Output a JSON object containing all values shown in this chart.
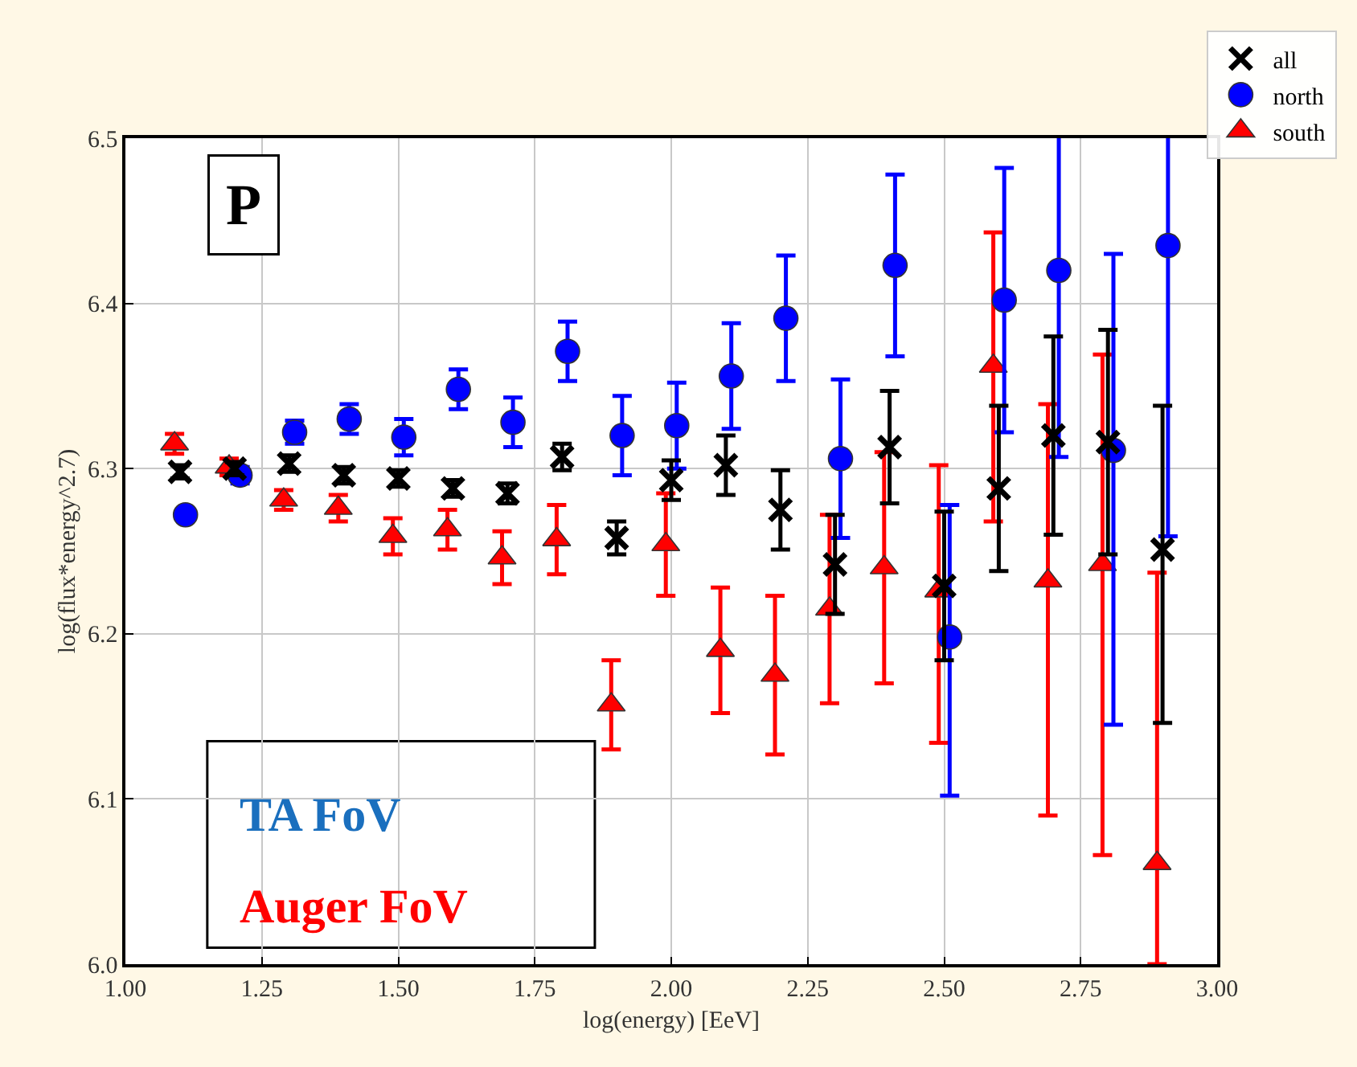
{
  "chart_data": {
    "type": "scatter",
    "xlabel": "log(energy) [EeV]",
    "ylabel": "log(flux*energy^2.7)",
    "xlim": [
      1.0,
      3.0
    ],
    "xticks": [
      {
        "value": 1.0,
        "label": "1.00"
      },
      {
        "value": 1.25,
        "label": "1.25"
      },
      {
        "value": 1.5,
        "label": "1.50"
      },
      {
        "value": 1.75,
        "label": "1.75"
      },
      {
        "value": 2.0,
        "label": "2.00"
      },
      {
        "value": 2.25,
        "label": "2.25"
      },
      {
        "value": 2.5,
        "label": "2.50"
      },
      {
        "value": 2.75,
        "label": "2.75"
      },
      {
        "value": 3.0,
        "label": "3.00"
      }
    ],
    "ylim": [
      6.0,
      6.5
    ],
    "yticks": [
      {
        "value": 6.0,
        "label": "6.0"
      },
      {
        "value": 6.1,
        "label": "6.1"
      },
      {
        "value": 6.2,
        "label": "6.2"
      },
      {
        "value": 6.3,
        "label": "6.3"
      },
      {
        "value": 6.4,
        "label": "6.4"
      },
      {
        "value": 6.5,
        "label": "6.5"
      }
    ],
    "grid": true,
    "legend": "top right",
    "annotations": [
      "P",
      "TA FoV",
      "Auger FoV"
    ],
    "series": [
      {
        "name": "all",
        "color": "#000000",
        "marker": "cross",
        "x": [
          1.1,
          1.2,
          1.3,
          1.4,
          1.5,
          1.6,
          1.7,
          1.8,
          1.9,
          2.0,
          2.1,
          2.2,
          2.3,
          2.4,
          2.5,
          2.6,
          2.7,
          2.8,
          2.9
        ],
        "values": [
          6.298,
          6.3,
          6.303,
          6.296,
          6.294,
          6.288,
          6.285,
          6.307,
          6.258,
          6.293,
          6.302,
          6.275,
          6.242,
          6.313,
          6.229,
          6.288,
          6.32,
          6.316,
          6.251
        ],
        "errors": [
          0.004,
          0.004,
          0.005,
          0.005,
          0.005,
          0.005,
          0.006,
          0.008,
          0.01,
          0.012,
          0.018,
          0.024,
          0.03,
          0.034,
          0.045,
          0.05,
          0.06,
          0.068,
          [
            6.146,
            6.338
          ]
        ]
      },
      {
        "name": "north",
        "color": "#0000ff",
        "marker": "circle",
        "x": [
          1.11,
          1.21,
          1.31,
          1.41,
          1.51,
          1.61,
          1.71,
          1.81,
          1.91,
          2.01,
          2.11,
          2.21,
          2.31,
          2.41,
          2.51,
          2.61,
          2.71,
          2.81,
          2.91
        ],
        "values": [
          6.272,
          6.296,
          6.322,
          6.33,
          6.319,
          6.348,
          6.328,
          6.371,
          6.32,
          6.326,
          6.356,
          6.391,
          6.306,
          6.423,
          6.198,
          6.402,
          6.42,
          6.311,
          6.435
        ],
        "errors": [
          0.003,
          0.005,
          0.007,
          0.009,
          0.011,
          0.012,
          0.015,
          0.018,
          0.024,
          0.026,
          0.032,
          0.038,
          0.048,
          0.055,
          [
            6.102,
            6.278
          ],
          0.08,
          0.113,
          [
            6.145,
            6.43
          ],
          0.176
        ]
      },
      {
        "name": "south",
        "color": "#ff0000",
        "marker": "triangle",
        "x": [
          1.09,
          1.19,
          1.29,
          1.39,
          1.49,
          1.59,
          1.69,
          1.79,
          1.89,
          1.99,
          2.09,
          2.19,
          2.29,
          2.39,
          2.49,
          2.59,
          2.69,
          2.79,
          2.89
        ],
        "values": [
          6.315,
          6.301,
          6.281,
          6.276,
          6.259,
          6.263,
          6.246,
          6.257,
          6.157,
          6.254,
          6.19,
          6.175,
          6.215,
          6.24,
          6.226,
          6.362,
          6.232,
          6.242,
          6.061
        ],
        "errors": [
          0.006,
          0.005,
          0.006,
          0.008,
          0.011,
          0.012,
          0.016,
          0.021,
          0.027,
          0.031,
          0.038,
          0.048,
          0.057,
          0.07,
          [
            6.134,
            6.302
          ],
          [
            6.268,
            6.443
          ],
          [
            6.09,
            6.339
          ],
          [
            6.066,
            6.369
          ],
          [
            6.0,
            6.237
          ]
        ]
      }
    ]
  }
}
